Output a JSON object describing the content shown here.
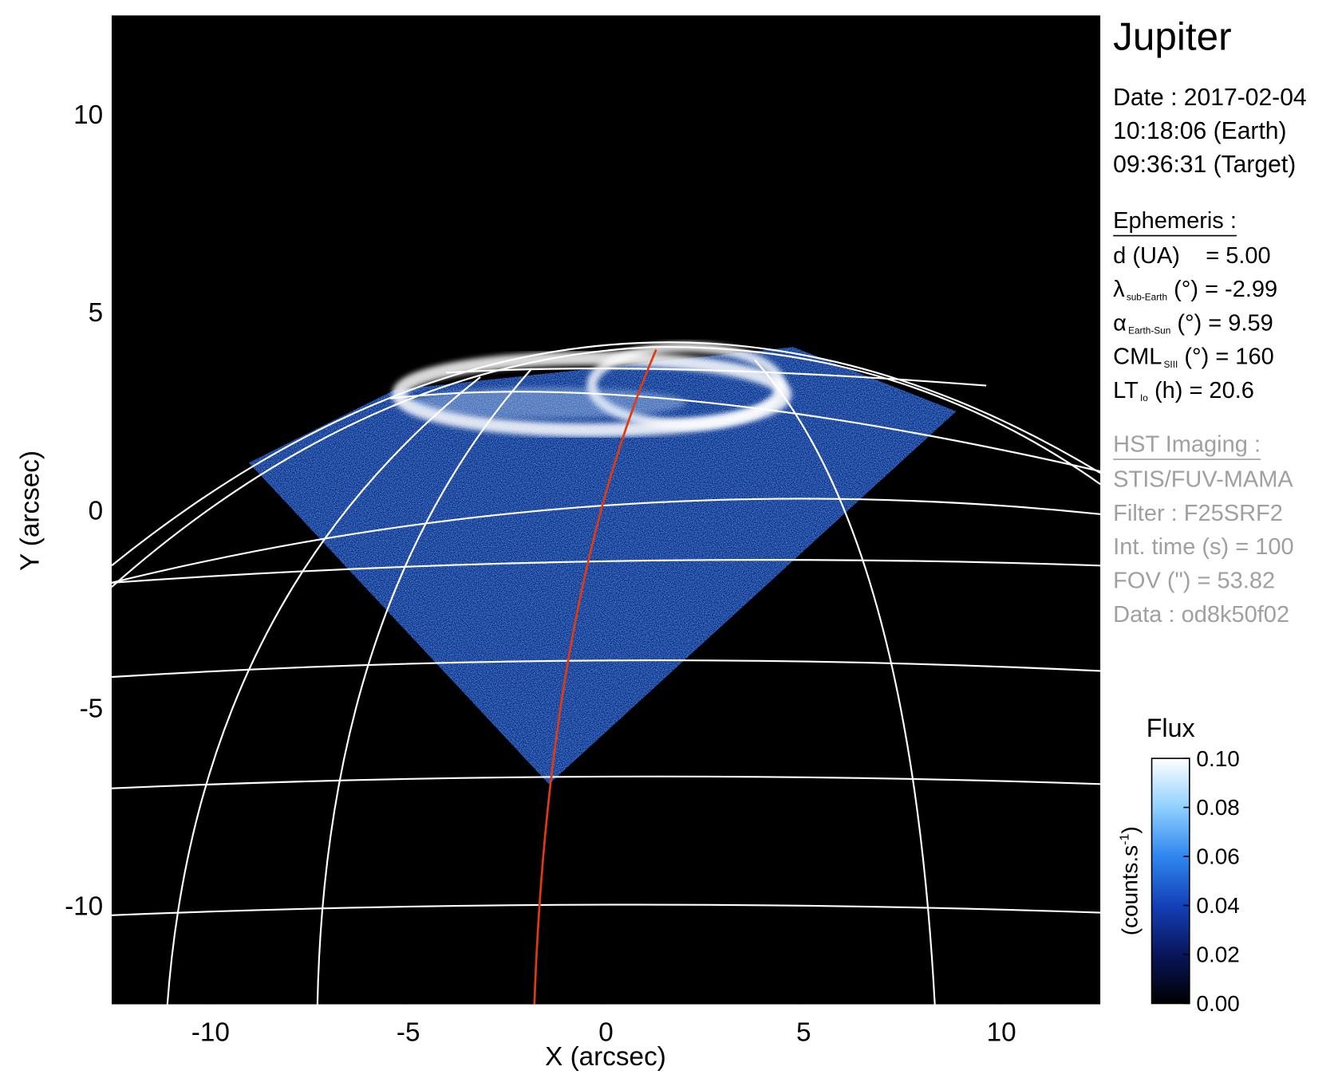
{
  "chart_data": {
    "type": "image",
    "xlabel": "X (arcsec)",
    "ylabel": "Y (arcsec)",
    "xlim": [
      -12.5,
      12.5
    ],
    "ylim": [
      -12.5,
      12.5
    ],
    "xticks": [
      -10,
      -5,
      0,
      5,
      10
    ],
    "yticks": [
      -10,
      -5,
      0,
      5,
      10
    ],
    "colorbar": {
      "title": "Flux",
      "unit": {
        "main": "(counts.s",
        "sup": "-1",
        "close": ")"
      },
      "clim": [
        0,
        0.1
      ],
      "ticks": [
        {
          "value": 0,
          "label": "0.00"
        },
        0.02,
        0.04,
        0.06,
        0.08,
        {
          "value": 0.1,
          "label": "0.10"
        }
      ],
      "colormap": [
        "#000000",
        "#08165a",
        "#1440b8",
        "#2f86ee",
        "#8fd0ff",
        "#ffffff"
      ]
    },
    "info": {
      "title": "Jupiter",
      "date_lines": [
        "Date : 2017-02-04",
        "10:18:06 (Earth)",
        "09:36:31 (Target)"
      ],
      "ephemeris": {
        "heading": "Ephemeris :",
        "lines": [
          {
            "main": "d (UA)    = 5.00"
          },
          {
            "main": "λ",
            "sub": "sub-Earth",
            "tail": " (°) = -2.99"
          },
          {
            "main": "α",
            "sub": "Earth-Sun",
            "tail": " (°) = 9.59"
          },
          {
            "main": "CML",
            "sub": "SIII",
            "tail": " (°) = 160"
          },
          {
            "main": "LT",
            "sub": "Io",
            "tail": " (h) = 20.6"
          }
        ]
      },
      "instrument": {
        "heading": "HST Imaging :",
        "lines": [
          "STIS/FUV-MAMA",
          "Filter : F25SRF2",
          "Int. time (s) = 100",
          "FOV (\") = 53.82",
          "Data : od8k50f02"
        ]
      }
    }
  }
}
